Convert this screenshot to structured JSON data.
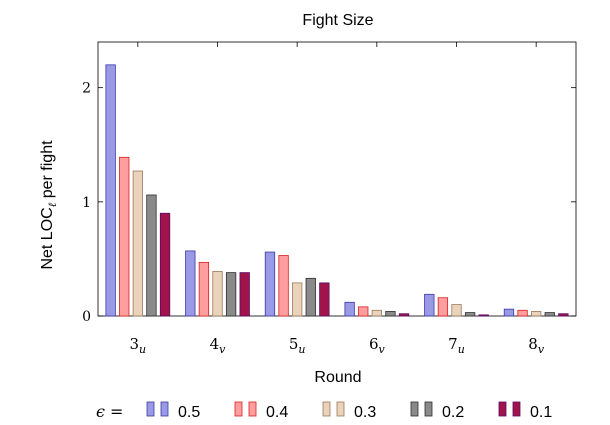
{
  "chart_data": {
    "type": "bar",
    "title": "Fight Size",
    "xlabel": "Round",
    "ylabel": "Net LOC",
    "ylabel_sub": "ℓ",
    "ylabel_suffix": " per fight",
    "ylim": [
      0,
      2.4
    ],
    "yticks": [
      0,
      1,
      2
    ],
    "grid": false,
    "legend_position": "bottom",
    "legend_prefix": "ϵ =",
    "categories": [
      {
        "base": "3",
        "sub": "u"
      },
      {
        "base": "4",
        "sub": "v"
      },
      {
        "base": "5",
        "sub": "u"
      },
      {
        "base": "6",
        "sub": "v"
      },
      {
        "base": "7",
        "sub": "u"
      },
      {
        "base": "8",
        "sub": "v"
      }
    ],
    "series": [
      {
        "name": "0.5",
        "fill": "#9999e6",
        "stroke": "#3a3aa6",
        "values": [
          2.2,
          0.57,
          0.56,
          0.12,
          0.19,
          0.06
        ]
      },
      {
        "name": "0.4",
        "fill": "#ff9e9e",
        "stroke": "#d92020",
        "values": [
          1.39,
          0.47,
          0.53,
          0.08,
          0.16,
          0.05
        ]
      },
      {
        "name": "0.3",
        "fill": "#ebd2bb",
        "stroke": "#9a7a5c",
        "values": [
          1.27,
          0.39,
          0.29,
          0.05,
          0.1,
          0.04
        ]
      },
      {
        "name": "0.2",
        "fill": "#8a8a8a",
        "stroke": "#2e2e2e",
        "values": [
          1.06,
          0.38,
          0.33,
          0.04,
          0.03,
          0.03
        ]
      },
      {
        "name": "0.1",
        "fill": "#a0144a",
        "stroke": "#5a0a6a",
        "values": [
          0.9,
          0.38,
          0.29,
          0.02,
          0.01,
          0.02
        ]
      }
    ]
  }
}
